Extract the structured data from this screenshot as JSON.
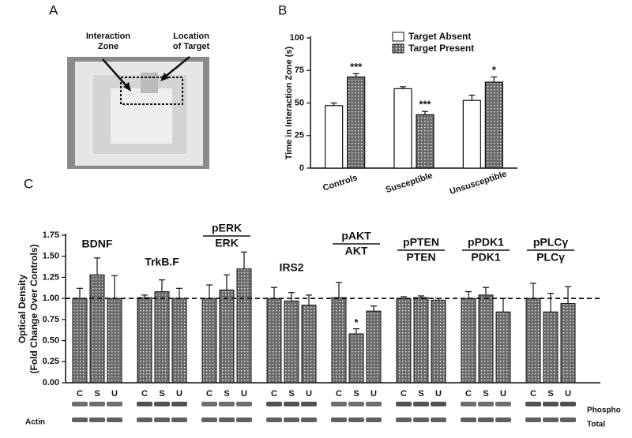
{
  "figure": {
    "panel_labels": [
      "A",
      "B",
      "C"
    ],
    "photo_annotations": {
      "zone": [
        "Interaction",
        "Zone"
      ],
      "target": [
        "Location",
        "of Target"
      ]
    },
    "blot_labels": {
      "phospho": "Phospho",
      "total": "Total",
      "actin": "Actin"
    }
  },
  "chart_data": [
    {
      "type": "bar",
      "y_label": "Time in Interaction Zone (s)",
      "categories": [
        "Controls",
        "Susceptible",
        "Unsusceptible"
      ],
      "series": [
        {
          "name": "Target Absent",
          "color": "#ffffff",
          "fill": "solid",
          "values": [
            48,
            61,
            52
          ],
          "errors": [
            2,
            1.5,
            4
          ],
          "markers": [
            null,
            null,
            null
          ]
        },
        {
          "name": "Target Present",
          "color": "#6a6a6a",
          "fill": "hatch",
          "values": [
            70,
            41,
            66
          ],
          "errors": [
            2.5,
            2.5,
            4
          ],
          "markers": [
            "***",
            "***",
            "*"
          ]
        }
      ],
      "ylim": [
        0,
        100
      ],
      "yticks": [
        0,
        25,
        50,
        75,
        100
      ]
    },
    {
      "type": "grouped_bar",
      "y_label": [
        "Optical Density",
        "(Fold Change Over Controls)"
      ],
      "categories": [
        "C",
        "S",
        "U"
      ],
      "color": "#6a6a6a",
      "fill": "hatch",
      "reference_line": 1,
      "groups": [
        {
          "label": "BDNF",
          "values": [
            1.0,
            1.28,
            1.0
          ],
          "errors": [
            0.12,
            0.2,
            0.27
          ],
          "markers": [
            null,
            null,
            null
          ]
        },
        {
          "label": "TrkB.F",
          "values": [
            1.01,
            1.08,
            1.0
          ],
          "errors": [
            0.03,
            0.14,
            0.12
          ],
          "markers": [
            null,
            null,
            null
          ]
        },
        {
          "numerator": "pERK",
          "denominator": "ERK",
          "values": [
            1.0,
            1.1,
            1.35
          ],
          "errors": [
            0.16,
            0.18,
            0.2
          ],
          "markers": [
            null,
            null,
            null
          ]
        },
        {
          "label": "IRS2",
          "values": [
            1.0,
            0.97,
            0.92
          ],
          "errors": [
            0.13,
            0.1,
            0.12
          ],
          "markers": [
            null,
            null,
            null
          ]
        },
        {
          "numerator": "pAKT",
          "denominator": "AKT",
          "values": [
            1.01,
            0.58,
            0.85
          ],
          "errors": [
            0.18,
            0.06,
            0.06
          ],
          "markers": [
            null,
            "*",
            null
          ]
        },
        {
          "numerator": "pPTEN",
          "denominator": "PTEN",
          "values": [
            1.0,
            1.01,
            0.98
          ],
          "errors": [
            0.02,
            0.02,
            0.02
          ],
          "markers": [
            null,
            null,
            null
          ]
        },
        {
          "numerator": "pPDK1",
          "denominator": "PDK1",
          "values": [
            1.0,
            1.04,
            0.84
          ],
          "errors": [
            0.08,
            0.09,
            0.16
          ],
          "markers": [
            null,
            null,
            null
          ]
        },
        {
          "numerator": "pPLCγ",
          "denominator": "PLCγ",
          "values": [
            1.0,
            0.84,
            0.94
          ],
          "errors": [
            0.18,
            0.22,
            0.2
          ],
          "markers": [
            null,
            null,
            null
          ]
        }
      ],
      "ylim": [
        0,
        1.75
      ],
      "yticks": [
        {
          "value": 0,
          "label": "0.00"
        },
        {
          "value": 0.25,
          "label": "0.25"
        },
        {
          "value": 0.5,
          "label": "0.50"
        },
        {
          "value": 0.75,
          "label": "0.75"
        },
        {
          "value": 1,
          "label": "1.00"
        },
        {
          "value": 1.25,
          "label": "1.25"
        },
        {
          "value": 1.5,
          "label": "1.50"
        },
        {
          "value": 1.75,
          "label": "1.75"
        }
      ]
    }
  ]
}
